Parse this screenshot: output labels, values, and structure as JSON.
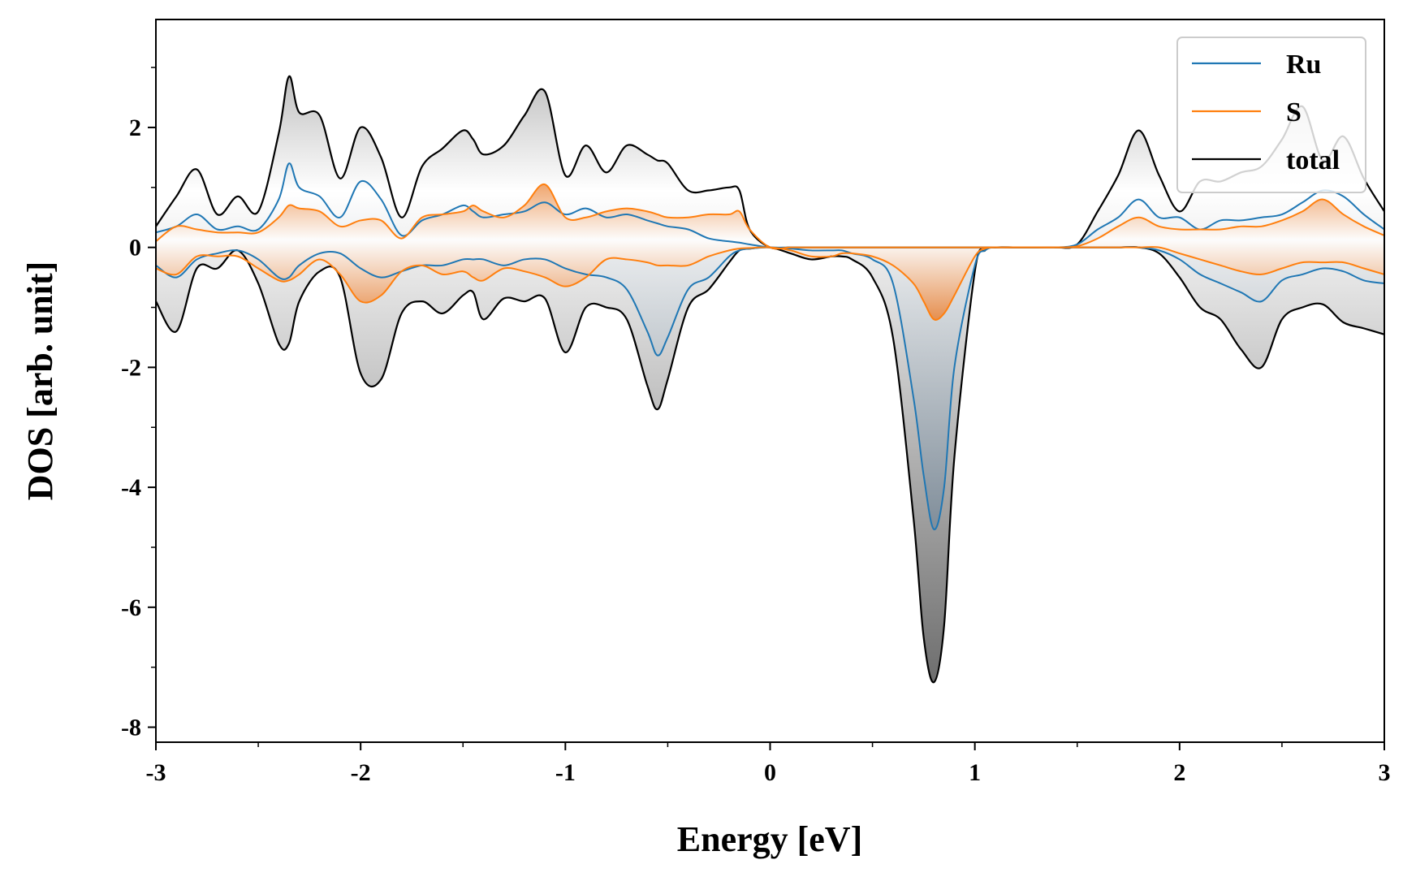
{
  "chart_data": {
    "type": "line",
    "title": "",
    "xlabel": "Energy [eV]",
    "ylabel": "DOS [arb. unit]",
    "xlim": [
      -3,
      3
    ],
    "ylim": [
      -8.25,
      3.8
    ],
    "xticks": [
      -3,
      -2,
      -1,
      0,
      1,
      2,
      3
    ],
    "xtick_labels": [
      "-3",
      "-2",
      "-1",
      "0",
      "1",
      "2",
      "3"
    ],
    "yticks": [
      -8,
      -6,
      -4,
      -2,
      0,
      2
    ],
    "ytick_labels": [
      "-8",
      "-6",
      "-4",
      "-2",
      "0",
      "2"
    ],
    "legend_position": "top-right",
    "grid": false,
    "x": [
      -3.0,
      -2.9,
      -2.8,
      -2.7,
      -2.6,
      -2.5,
      -2.4,
      -2.35,
      -2.3,
      -2.2,
      -2.1,
      -2.0,
      -1.9,
      -1.8,
      -1.7,
      -1.6,
      -1.5,
      -1.45,
      -1.4,
      -1.3,
      -1.2,
      -1.1,
      -1.0,
      -0.9,
      -0.8,
      -0.7,
      -0.6,
      -0.55,
      -0.5,
      -0.4,
      -0.3,
      -0.2,
      -0.15,
      -0.1,
      0.0,
      0.1,
      0.2,
      0.3,
      0.35,
      0.4,
      0.5,
      0.6,
      0.7,
      0.75,
      0.8,
      0.85,
      0.9,
      1.0,
      1.05,
      1.1,
      1.2,
      1.3,
      1.4,
      1.5,
      1.6,
      1.7,
      1.8,
      1.9,
      2.0,
      2.1,
      2.2,
      2.3,
      2.4,
      2.5,
      2.6,
      2.7,
      2.8,
      2.9,
      3.0
    ],
    "series": [
      {
        "name": "Ru",
        "color": "#1f77b4",
        "spin_up": [
          0.25,
          0.35,
          0.55,
          0.3,
          0.35,
          0.3,
          0.8,
          1.4,
          1.0,
          0.85,
          0.5,
          1.1,
          0.8,
          0.2,
          0.45,
          0.55,
          0.7,
          0.6,
          0.5,
          0.55,
          0.6,
          0.75,
          0.55,
          0.65,
          0.5,
          0.55,
          0.45,
          0.4,
          0.35,
          0.3,
          0.15,
          0.1,
          0.08,
          0.05,
          0.0,
          0.0,
          0.0,
          0.0,
          0.0,
          0.0,
          0.0,
          0.0,
          0.0,
          0.0,
          0.0,
          0.0,
          0.0,
          0.0,
          0.0,
          0.0,
          0.0,
          0.0,
          0.0,
          0.05,
          0.3,
          0.5,
          0.8,
          0.5,
          0.5,
          0.3,
          0.45,
          0.45,
          0.5,
          0.55,
          0.75,
          0.95,
          0.85,
          0.55,
          0.3
        ],
        "spin_down": [
          -0.3,
          -0.5,
          -0.2,
          -0.1,
          -0.05,
          -0.2,
          -0.5,
          -0.5,
          -0.3,
          -0.1,
          -0.1,
          -0.35,
          -0.5,
          -0.4,
          -0.3,
          -0.3,
          -0.2,
          -0.2,
          -0.2,
          -0.3,
          -0.2,
          -0.2,
          -0.35,
          -0.45,
          -0.5,
          -0.7,
          -1.4,
          -1.8,
          -1.5,
          -0.7,
          -0.5,
          -0.15,
          -0.05,
          -0.02,
          0.0,
          -0.02,
          -0.05,
          -0.05,
          -0.05,
          -0.1,
          -0.2,
          -0.6,
          -2.5,
          -3.8,
          -4.7,
          -4.0,
          -2.0,
          -0.3,
          -0.05,
          0.0,
          0.0,
          0.0,
          0.0,
          0.0,
          0.0,
          0.0,
          0.0,
          -0.05,
          -0.2,
          -0.45,
          -0.6,
          -0.75,
          -0.9,
          -0.55,
          -0.45,
          -0.35,
          -0.4,
          -0.55,
          -0.6
        ]
      },
      {
        "name": "S",
        "color": "#ff7f0e",
        "spin_up": [
          0.1,
          0.35,
          0.3,
          0.25,
          0.25,
          0.25,
          0.5,
          0.7,
          0.65,
          0.6,
          0.35,
          0.45,
          0.45,
          0.15,
          0.5,
          0.55,
          0.6,
          0.7,
          0.6,
          0.5,
          0.7,
          1.05,
          0.5,
          0.5,
          0.6,
          0.65,
          0.6,
          0.55,
          0.5,
          0.5,
          0.55,
          0.55,
          0.6,
          0.3,
          0.0,
          0.0,
          0.0,
          0.0,
          0.0,
          0.0,
          0.0,
          0.0,
          0.0,
          0.0,
          0.0,
          0.0,
          0.0,
          0.0,
          0.0,
          0.0,
          0.0,
          0.0,
          0.0,
          0.02,
          0.15,
          0.35,
          0.5,
          0.35,
          0.3,
          0.3,
          0.3,
          0.35,
          0.35,
          0.45,
          0.6,
          0.8,
          0.55,
          0.35,
          0.2
        ],
        "spin_down": [
          -0.35,
          -0.45,
          -0.15,
          -0.15,
          -0.15,
          -0.35,
          -0.55,
          -0.55,
          -0.45,
          -0.2,
          -0.45,
          -0.9,
          -0.8,
          -0.4,
          -0.3,
          -0.45,
          -0.4,
          -0.5,
          -0.55,
          -0.35,
          -0.4,
          -0.5,
          -0.65,
          -0.5,
          -0.2,
          -0.2,
          -0.25,
          -0.3,
          -0.3,
          -0.3,
          -0.15,
          -0.05,
          -0.02,
          -0.01,
          0.0,
          -0.05,
          -0.15,
          -0.15,
          -0.1,
          -0.1,
          -0.15,
          -0.3,
          -0.6,
          -0.9,
          -1.2,
          -1.1,
          -0.8,
          -0.15,
          -0.02,
          0.0,
          0.0,
          0.0,
          0.0,
          0.0,
          0.0,
          0.0,
          0.0,
          0.0,
          -0.1,
          -0.2,
          -0.3,
          -0.4,
          -0.45,
          -0.35,
          -0.25,
          -0.25,
          -0.25,
          -0.35,
          -0.45
        ]
      },
      {
        "name": "total",
        "color": "#000000",
        "spin_up": [
          0.35,
          0.85,
          1.3,
          0.55,
          0.85,
          0.6,
          1.9,
          2.85,
          2.25,
          2.2,
          1.15,
          2.0,
          1.5,
          0.5,
          1.35,
          1.65,
          1.95,
          1.8,
          1.55,
          1.7,
          2.2,
          2.6,
          1.2,
          1.7,
          1.25,
          1.7,
          1.55,
          1.45,
          1.4,
          0.95,
          0.95,
          1.0,
          0.95,
          0.3,
          0.0,
          0.0,
          0.0,
          0.0,
          0.0,
          0.0,
          0.0,
          0.0,
          0.0,
          0.0,
          0.0,
          0.0,
          0.0,
          0.0,
          0.0,
          0.0,
          0.0,
          0.0,
          0.0,
          0.05,
          0.6,
          1.2,
          1.95,
          1.2,
          0.6,
          1.1,
          1.1,
          1.25,
          1.35,
          1.8,
          2.35,
          1.45,
          1.85,
          1.15,
          0.6
        ],
        "spin_down": [
          -0.9,
          -1.4,
          -0.35,
          -0.35,
          -0.05,
          -0.6,
          -1.6,
          -1.6,
          -0.9,
          -0.4,
          -0.5,
          -2.1,
          -2.2,
          -1.1,
          -0.9,
          -1.1,
          -0.8,
          -0.75,
          -1.2,
          -0.85,
          -0.9,
          -0.85,
          -1.75,
          -1.0,
          -1.0,
          -1.2,
          -2.3,
          -2.7,
          -2.2,
          -1.0,
          -0.7,
          -0.25,
          -0.05,
          -0.02,
          0.0,
          -0.1,
          -0.2,
          -0.15,
          -0.15,
          -0.2,
          -0.5,
          -1.5,
          -4.5,
          -6.5,
          -7.25,
          -6.3,
          -3.5,
          -0.4,
          -0.05,
          0.0,
          0.0,
          0.0,
          0.0,
          0.0,
          0.0,
          0.0,
          0.0,
          -0.1,
          -0.5,
          -1.0,
          -1.2,
          -1.7,
          -2.0,
          -1.2,
          -1.0,
          -0.95,
          -1.25,
          -1.35,
          -1.45
        ]
      }
    ]
  }
}
